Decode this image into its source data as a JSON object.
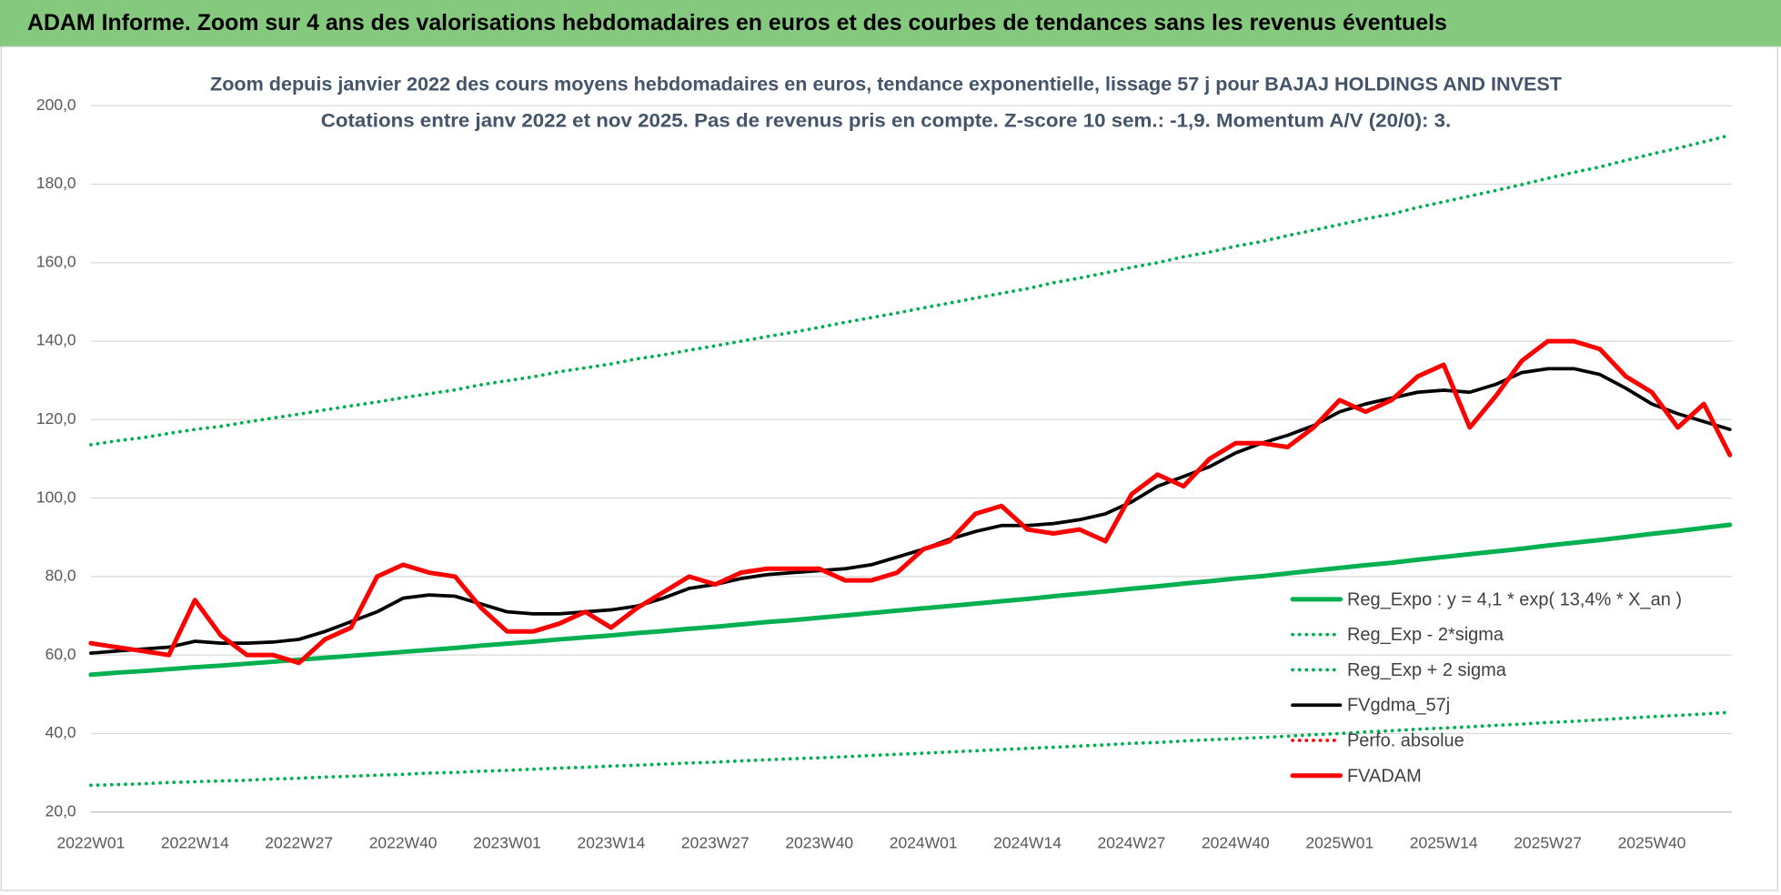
{
  "chart_data": {
    "type": "line",
    "title": "ADAM Informe. Zoom sur 4 ans des valorisations hebdomadaires en euros et des courbes de tendances sans les revenus éventuels",
    "subtitle": [
      "Zoom depuis janvier 2022 des cours moyens hebdomadaires en euros, tendance exponentielle, lissage 57 j pour BAJAJ HOLDINGS AND INVEST",
      "Cotations entre janv 2022 et nov 2025. Pas de revenus pris en compte. Z-score 10 sem.: -1,9. Momentum A/V (20/0): 3."
    ],
    "categories": [
      "2022W01",
      null,
      null,
      null,
      "2022W14",
      null,
      null,
      null,
      "2022W27",
      null,
      null,
      null,
      "2022W40",
      null,
      null,
      null,
      "2023W01",
      null,
      null,
      null,
      "2023W14",
      null,
      null,
      null,
      "2023W27",
      null,
      null,
      null,
      "2023W40",
      null,
      null,
      null,
      "2024W01",
      null,
      null,
      null,
      "2024W14",
      null,
      null,
      null,
      "2024W27",
      null,
      null,
      null,
      "2024W40",
      null,
      null,
      null,
      "2025W01",
      null,
      null,
      null,
      "2025W14",
      null,
      null,
      null,
      "2025W27",
      null,
      null,
      null,
      "2025W40",
      null,
      null,
      null
    ],
    "ylim": [
      20,
      200
    ],
    "yticks": [
      {
        "value": 20,
        "label": "20,0"
      },
      {
        "value": 40,
        "label": "40,0"
      },
      {
        "value": 60,
        "label": "60,0"
      },
      {
        "value": 80,
        "label": "80,0"
      },
      {
        "value": 100,
        "label": "100,0"
      },
      {
        "value": 120,
        "label": "120,0"
      },
      {
        "value": 140,
        "label": "140,0"
      },
      {
        "value": 160,
        "label": "160,0"
      },
      {
        "value": 180,
        "label": "180,0"
      },
      {
        "value": 200,
        "label": "200,0"
      }
    ],
    "grid": true,
    "legend": "right",
    "series": [
      {
        "name": "Reg_Expo : y = 4,1 * exp( 13,4% *  X_an )",
        "color": "#00b050",
        "line_style": "solid",
        "values": [
          55.0,
          55.5,
          55.9,
          56.4,
          56.9,
          57.3,
          57.8,
          58.3,
          58.8,
          59.3,
          59.8,
          60.3,
          60.8,
          61.3,
          61.8,
          62.4,
          62.9,
          63.4,
          64.0,
          64.5,
          65.0,
          65.6,
          66.1,
          66.7,
          67.2,
          67.8,
          68.4,
          68.9,
          69.5,
          70.1,
          70.7,
          71.3,
          71.9,
          72.5,
          73.1,
          73.7,
          74.3,
          75.0,
          75.6,
          76.2,
          76.9,
          77.5,
          78.2,
          78.8,
          79.5,
          80.1,
          80.8,
          81.5,
          82.2,
          82.9,
          83.5,
          84.3,
          85.0,
          85.7,
          86.4,
          87.1,
          87.9,
          88.6,
          89.3,
          90.1,
          90.9,
          91.6,
          92.4,
          93.2
        ]
      },
      {
        "name": "Reg_Exp - 2*sigma",
        "color": "#00b050",
        "line_style": "dotted",
        "values": [
          26.8,
          27.0,
          27.2,
          27.5,
          27.7,
          27.9,
          28.1,
          28.4,
          28.6,
          28.9,
          29.1,
          29.4,
          29.6,
          29.9,
          30.1,
          30.4,
          30.6,
          30.9,
          31.2,
          31.4,
          31.7,
          31.9,
          32.2,
          32.5,
          32.7,
          33.0,
          33.3,
          33.6,
          33.8,
          34.1,
          34.4,
          34.7,
          35.0,
          35.3,
          35.6,
          35.9,
          36.2,
          36.5,
          36.8,
          37.1,
          37.5,
          37.7,
          38.1,
          38.4,
          38.7,
          39.0,
          39.3,
          39.7,
          40.0,
          40.4,
          40.7,
          41.1,
          41.4,
          41.7,
          42.1,
          42.4,
          42.8,
          43.1,
          43.5,
          43.9,
          44.3,
          44.6,
          45.0,
          45.4
        ]
      },
      {
        "name": "Reg_Exp + 2 sigma",
        "color": "#00b050",
        "line_style": "dotted",
        "values": [
          113.6,
          114.6,
          115.4,
          116.5,
          117.5,
          118.3,
          119.4,
          120.4,
          121.4,
          122.5,
          123.5,
          124.5,
          125.6,
          126.6,
          127.6,
          128.9,
          129.9,
          130.9,
          132.2,
          133.2,
          134.2,
          135.5,
          136.5,
          137.7,
          138.8,
          140.0,
          141.2,
          142.3,
          143.5,
          144.8,
          146.0,
          147.2,
          148.5,
          149.7,
          151.0,
          152.2,
          153.4,
          154.9,
          156.1,
          157.4,
          158.8,
          160.0,
          161.5,
          162.7,
          164.2,
          165.4,
          166.9,
          168.3,
          169.7,
          171.2,
          172.4,
          174.1,
          175.5,
          177.0,
          178.4,
          179.9,
          181.5,
          183.0,
          184.4,
          186.1,
          187.7,
          189.2,
          190.8,
          192.5
        ]
      },
      {
        "name": "FVgdma_57j",
        "color": "#000000",
        "line_style": "solid",
        "values": [
          60.5,
          61,
          61.5,
          62,
          63.5,
          63,
          63,
          63.3,
          64,
          66,
          68.5,
          71,
          74.5,
          75.3,
          75,
          73,
          71,
          70.5,
          70.5,
          71,
          71.5,
          72.5,
          74.5,
          77,
          78,
          79.5,
          80.5,
          81,
          81.5,
          82,
          83,
          85,
          87,
          89.5,
          91.5,
          93,
          93,
          93.5,
          94.5,
          96,
          99,
          103,
          105.5,
          108,
          111.5,
          114,
          116,
          118.5,
          122,
          124,
          125.5,
          127,
          127.5,
          127,
          129,
          132,
          133,
          133,
          131.5,
          128,
          124,
          121.5,
          119.5,
          117.5
        ]
      },
      {
        "name": "Perfo. absolue",
        "color": "#ff0000",
        "line_style": "dotted",
        "values": [
          null,
          null,
          null,
          null,
          null,
          null,
          null,
          null,
          null,
          null,
          null,
          null,
          null,
          null,
          null,
          null,
          null,
          null,
          null,
          null,
          null,
          null,
          null,
          null,
          null,
          null,
          null,
          null,
          null,
          null,
          null,
          null,
          null,
          null,
          null,
          null,
          null,
          null,
          null,
          null,
          null,
          null,
          null,
          null,
          null,
          null,
          null,
          null,
          null,
          null,
          null,
          null,
          null,
          null,
          null,
          null,
          null,
          null,
          null,
          null,
          null,
          null,
          null,
          null
        ]
      },
      {
        "name": "FVADAM",
        "color": "#ff0000",
        "line_style": "solid",
        "values": [
          63,
          62,
          61,
          60,
          74,
          65,
          60,
          60,
          58,
          64,
          67,
          80,
          83,
          81,
          80,
          72,
          66,
          66,
          68,
          71,
          67,
          72,
          76,
          80,
          78,
          81,
          82,
          82,
          82,
          79,
          79,
          81,
          87,
          89,
          96,
          98,
          92,
          91,
          92,
          89,
          101,
          106,
          103,
          110,
          114,
          114,
          113,
          118,
          125,
          122,
          125,
          131,
          134,
          118,
          126,
          135,
          140,
          140,
          138,
          131,
          127,
          118,
          124,
          111
        ]
      }
    ]
  }
}
